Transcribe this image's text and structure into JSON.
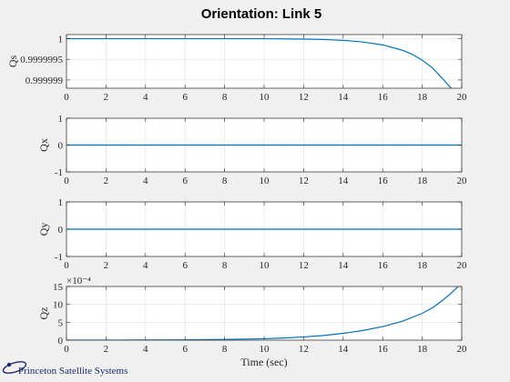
{
  "figure_title": "Orientation: Link 5",
  "logo": {
    "text": "Princeton Satellite Systems"
  },
  "colors": {
    "line": "#0072bd",
    "background": "#f0f0f0",
    "axes": "#ffffff",
    "grid": "#dfdfdf"
  },
  "chart_data": [
    {
      "type": "line",
      "ylabel": "Qs",
      "xlabel": "",
      "xlim": [
        0,
        20
      ],
      "ylim": [
        0.9999988,
        1.0000001
      ],
      "xticks": [
        0,
        2,
        4,
        6,
        8,
        10,
        12,
        14,
        16,
        18,
        20
      ],
      "yticks": [
        0.999999,
        0.9999995,
        1
      ],
      "ytick_labels": [
        "0.999999",
        "0.9999995",
        "1"
      ],
      "grid": true,
      "exponent_label": "",
      "x": [
        0,
        2,
        4,
        6,
        8,
        10,
        12,
        13,
        14,
        15,
        16,
        17,
        17.5,
        18,
        18.5,
        19,
        19.5,
        20
      ],
      "y": [
        1,
        1,
        1,
        1,
        1,
        1,
        0.99999999,
        0.99999998,
        0.99999996,
        0.99999992,
        0.99999985,
        0.99999972,
        0.99999962,
        0.99999948,
        0.9999993,
        0.99999905,
        0.99999878,
        0.9999984
      ]
    },
    {
      "type": "line",
      "ylabel": "Qx",
      "xlabel": "",
      "xlim": [
        0,
        20
      ],
      "ylim": [
        -1,
        1
      ],
      "xticks": [
        0,
        2,
        4,
        6,
        8,
        10,
        12,
        14,
        16,
        18,
        20
      ],
      "yticks": [
        -1,
        0,
        1
      ],
      "ytick_labels": [
        "-1",
        "0",
        "1"
      ],
      "grid": true,
      "exponent_label": "",
      "x": [
        0,
        20
      ],
      "y": [
        0,
        0
      ]
    },
    {
      "type": "line",
      "ylabel": "Qy",
      "xlabel": "",
      "xlim": [
        0,
        20
      ],
      "ylim": [
        -1,
        1
      ],
      "xticks": [
        0,
        2,
        4,
        6,
        8,
        10,
        12,
        14,
        16,
        18,
        20
      ],
      "yticks": [
        -1,
        0,
        1
      ],
      "ytick_labels": [
        "-1",
        "0",
        "1"
      ],
      "grid": true,
      "exponent_label": "",
      "x": [
        0,
        20
      ],
      "y": [
        0,
        0
      ]
    },
    {
      "type": "line",
      "ylabel": "Qz",
      "xlabel": "Time (sec)",
      "xlim": [
        0,
        20
      ],
      "ylim": [
        0,
        15
      ],
      "xticks": [
        0,
        2,
        4,
        6,
        8,
        10,
        12,
        14,
        16,
        18,
        20
      ],
      "yticks": [
        0,
        5,
        10,
        15
      ],
      "ytick_labels": [
        "0",
        "5",
        "10",
        "15"
      ],
      "grid": true,
      "exponent_label": "×10⁻⁴",
      "x": [
        0,
        2,
        4,
        6,
        8,
        10,
        11,
        12,
        13,
        14,
        15,
        16,
        17,
        18,
        18.5,
        19,
        19.5,
        20
      ],
      "y": [
        0,
        0.005,
        0.03,
        0.08,
        0.2,
        0.4,
        0.6,
        0.9,
        1.3,
        1.9,
        2.7,
        3.8,
        5.3,
        7.5,
        9.0,
        11.0,
        13.3,
        16.0
      ]
    }
  ]
}
